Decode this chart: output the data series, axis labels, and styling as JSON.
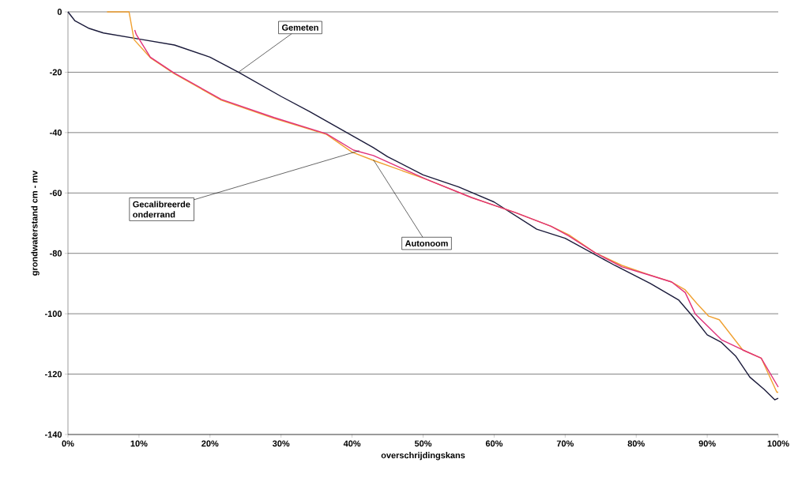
{
  "chart_data": {
    "type": "line",
    "xlabel": "overschrijdingskans",
    "ylabel": "grondwaterstand cm - mv",
    "xlim": [
      0,
      100
    ],
    "ylim": [
      -140,
      0
    ],
    "xticks": [
      {
        "value": 0,
        "label": "0%"
      },
      {
        "value": 10,
        "label": "10%"
      },
      {
        "value": 20,
        "label": "20%"
      },
      {
        "value": 30,
        "label": "30%"
      },
      {
        "value": 40,
        "label": "40%"
      },
      {
        "value": 50,
        "label": "50%"
      },
      {
        "value": 60,
        "label": "60%"
      },
      {
        "value": 70,
        "label": "70%"
      },
      {
        "value": 80,
        "label": "80%"
      },
      {
        "value": 90,
        "label": "90%"
      },
      {
        "value": 100,
        "label": "100%"
      }
    ],
    "yticks": [
      -140,
      -120,
      -100,
      -80,
      -60,
      -40,
      -20,
      0
    ],
    "grid": "y",
    "marker": "none",
    "line_style": "solid",
    "series": [
      {
        "color": "#1a1a3a",
        "x": [
          0,
          1,
          3,
          5,
          10,
          15,
          20,
          24,
          27,
          30,
          34,
          37,
          40,
          43,
          45,
          50,
          55,
          60,
          66,
          70,
          77,
          82,
          86,
          88,
          90,
          92,
          94,
          96,
          98,
          99.5,
          100
        ],
        "values": [
          0,
          -3,
          -5.5,
          -7,
          -9,
          -11,
          -15,
          -20,
          -24,
          -28,
          -33,
          -37,
          -41,
          -45,
          -48,
          -54,
          -58,
          -63,
          -72,
          -75,
          -84,
          -90,
          -95.5,
          -101,
          -107,
          -109.5,
          -114,
          -121,
          -125,
          -128.5,
          -128
        ]
      },
      {
        "color": "#f0a030",
        "x": [
          5.5,
          8.6,
          9.3,
          11.6,
          14.9,
          21.6,
          29,
          36.4,
          40,
          43,
          50.5,
          56.8,
          63,
          68,
          70.5,
          74.2,
          78,
          81.6,
          85,
          86.9,
          88.5,
          90.2,
          91.7,
          95,
          97.6,
          99.8,
          100
        ],
        "values": [
          0,
          0,
          -9.2,
          -15.2,
          -20.4,
          -29.3,
          -35.3,
          -40.6,
          -46.5,
          -49.2,
          -55.5,
          -61.5,
          -66.5,
          -71,
          -73.8,
          -79.8,
          -84,
          -86.9,
          -89.5,
          -92.1,
          -96.5,
          -100.8,
          -102,
          -112,
          -114.7,
          -126,
          -126
        ]
      },
      {
        "color": "#e0307a",
        "x": [
          9.4,
          9.6,
          11.6,
          14.9,
          21.6,
          29,
          36.4,
          40.2,
          43,
          50.5,
          56.8,
          63,
          68,
          70.5,
          74.2,
          78,
          81.6,
          85,
          86.9,
          88.3,
          92,
          95,
          97.6,
          100
        ],
        "values": [
          -6,
          -7.4,
          -15,
          -20.2,
          -29,
          -35,
          -40.4,
          -45.8,
          -47.6,
          -55.5,
          -61.5,
          -66.5,
          -71,
          -74.2,
          -79.8,
          -84.5,
          -87,
          -89.5,
          -93,
          -100,
          -108.6,
          -112,
          -114.7,
          -124.3
        ]
      }
    ],
    "annotations": [
      {
        "text": "Gemeten",
        "x": 24,
        "y": -20
      },
      {
        "text": "Gecalibreerde onderrand",
        "x": 41,
        "y": -46
      },
      {
        "text": "Autonoom",
        "x": 43,
        "y": -49
      }
    ]
  }
}
